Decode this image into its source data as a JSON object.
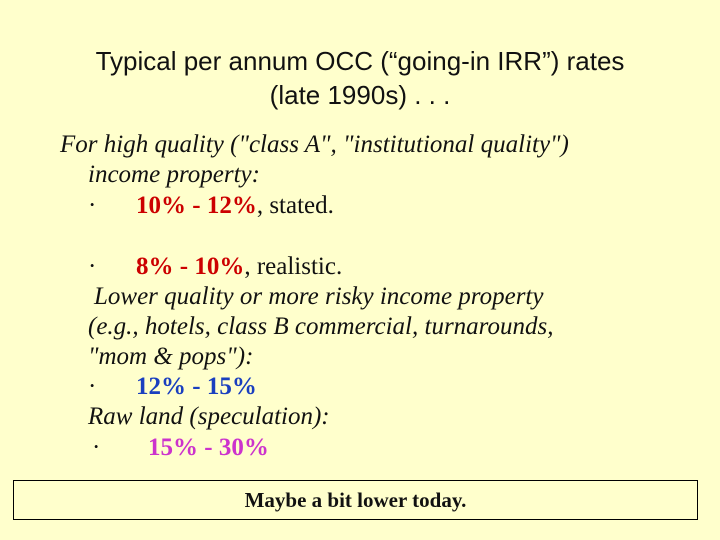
{
  "slide": {
    "title_line1": "Typical per annum OCC (“going-in IRR”) rates",
    "title_line2": "(late 1990s) . . .",
    "intro_line1": "For high quality (\"class A\", \"institutional quality\")",
    "intro_line2": "income property:",
    "bullet_symbol": "·",
    "stated_range": "10% - 12%",
    "stated_suffix": ", stated.",
    "realistic_range": "8% - 10%",
    "realistic_suffix": ", realistic.",
    "lower_line1": "Lower quality or more risky income property",
    "lower_line2": "(e.g., hotels, class B commercial, turnarounds,",
    "lower_line3": "\"mom & pops\"):",
    "lower_range": "12% - 15%",
    "raw_land_line": "Raw land (speculation):",
    "raw_land_range": "15% - 30%",
    "footer_note": "Maybe a bit lower today."
  },
  "colors": {
    "background": "#ffffcc",
    "stated": "#cc0000",
    "realistic": "#cc0000",
    "lower": "#1a3fbf",
    "raw_land": "#cc33cc"
  }
}
